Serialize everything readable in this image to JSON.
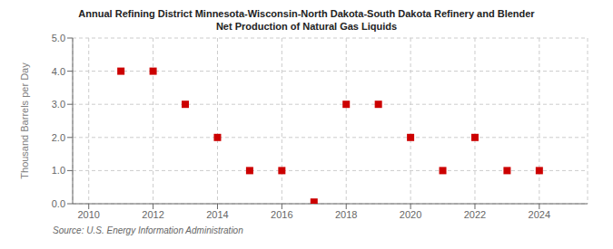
{
  "chart_data": {
    "type": "scatter",
    "title": "Annual Refining District Minnesota-Wisconsin-North Dakota-South Dakota Refinery and Blender",
    "subtitle": "Net Production of Natural Gas Liquids",
    "ylabel": "Thousand Barrels per Day",
    "source": "Source: U.S. Energy Information Administration",
    "x": [
      2011,
      2012,
      2013,
      2014,
      2015,
      2016,
      2017,
      2018,
      2019,
      2020,
      2021,
      2022,
      2023,
      2024
    ],
    "values": [
      4.0,
      4.0,
      3.0,
      2.0,
      1.0,
      1.0,
      0.05,
      3.0,
      3.0,
      2.0,
      1.0,
      2.0,
      1.0,
      1.0
    ],
    "color": "#cc0000",
    "marker": "square",
    "xlim": [
      2009.5,
      2025.5
    ],
    "xticks": [
      2010,
      2012,
      2014,
      2016,
      2018,
      2020,
      2022,
      2024
    ],
    "ylim": [
      0,
      5.0
    ],
    "yticks": [
      {
        "value": 0.0,
        "label": "0.0"
      },
      {
        "value": 1.0,
        "label": "1.0"
      },
      {
        "value": 2.0,
        "label": "2.0"
      },
      {
        "value": 3.0,
        "label": "3.0"
      },
      {
        "value": 4.0,
        "label": "4.0"
      },
      {
        "value": 5.0,
        "label": "5.0"
      }
    ],
    "grid": true
  }
}
